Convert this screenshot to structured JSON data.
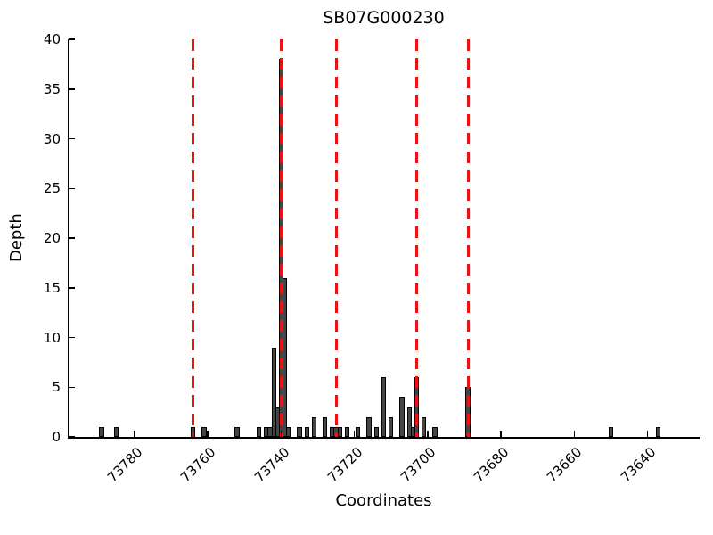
{
  "chart_data": {
    "type": "bar",
    "title": "SB07G000230",
    "xlabel": "Coordinates",
    "ylabel": "Depth",
    "x_axis_reversed": true,
    "xlim": [
      73798,
      73626
    ],
    "ylim": [
      0,
      40
    ],
    "x_ticks": [
      73780,
      73760,
      73740,
      73720,
      73700,
      73680,
      73660,
      73640
    ],
    "y_ticks": [
      0,
      5,
      10,
      15,
      20,
      25,
      30,
      35,
      40
    ],
    "x_tick_rotation": 45,
    "grid": false,
    "legend": null,
    "bar_width_units": 1.3,
    "bars": [
      {
        "x": 73789,
        "depth": 1
      },
      {
        "x": 73785,
        "depth": 1
      },
      {
        "x": 73764,
        "depth": 1
      },
      {
        "x": 73761,
        "depth": 1
      },
      {
        "x": 73752,
        "depth": 1
      },
      {
        "x": 73746,
        "depth": 1
      },
      {
        "x": 73744,
        "depth": 1
      },
      {
        "x": 73743,
        "depth": 1
      },
      {
        "x": 73742,
        "depth": 9
      },
      {
        "x": 73741,
        "depth": 3
      },
      {
        "x": 73740,
        "depth": 38
      },
      {
        "x": 73739,
        "depth": 16
      },
      {
        "x": 73738,
        "depth": 1
      },
      {
        "x": 73735,
        "depth": 1
      },
      {
        "x": 73733,
        "depth": 1
      },
      {
        "x": 73731,
        "depth": 2
      },
      {
        "x": 73728,
        "depth": 2
      },
      {
        "x": 73726,
        "depth": 1
      },
      {
        "x": 73725,
        "depth": 1
      },
      {
        "x": 73724,
        "depth": 1
      },
      {
        "x": 73722,
        "depth": 1
      },
      {
        "x": 73719,
        "depth": 1
      },
      {
        "x": 73716,
        "depth": 2
      },
      {
        "x": 73714,
        "depth": 1
      },
      {
        "x": 73712,
        "depth": 6
      },
      {
        "x": 73710,
        "depth": 2
      },
      {
        "x": 73707,
        "depth": 4
      },
      {
        "x": 73705,
        "depth": 3
      },
      {
        "x": 73704,
        "depth": 1
      },
      {
        "x": 73703,
        "depth": 6
      },
      {
        "x": 73701,
        "depth": 2
      },
      {
        "x": 73698,
        "depth": 1
      },
      {
        "x": 73689,
        "depth": 5
      },
      {
        "x": 73650,
        "depth": 1
      },
      {
        "x": 73637,
        "depth": 1
      }
    ],
    "vlines": [
      73764,
      73740,
      73725,
      73703,
      73689
    ],
    "colors": {
      "bar_fill": "#454545",
      "bar_edge": "#000000",
      "vline": "#ee1111",
      "axis": "#000000",
      "background": "#ffffff",
      "text": "#000000"
    }
  }
}
